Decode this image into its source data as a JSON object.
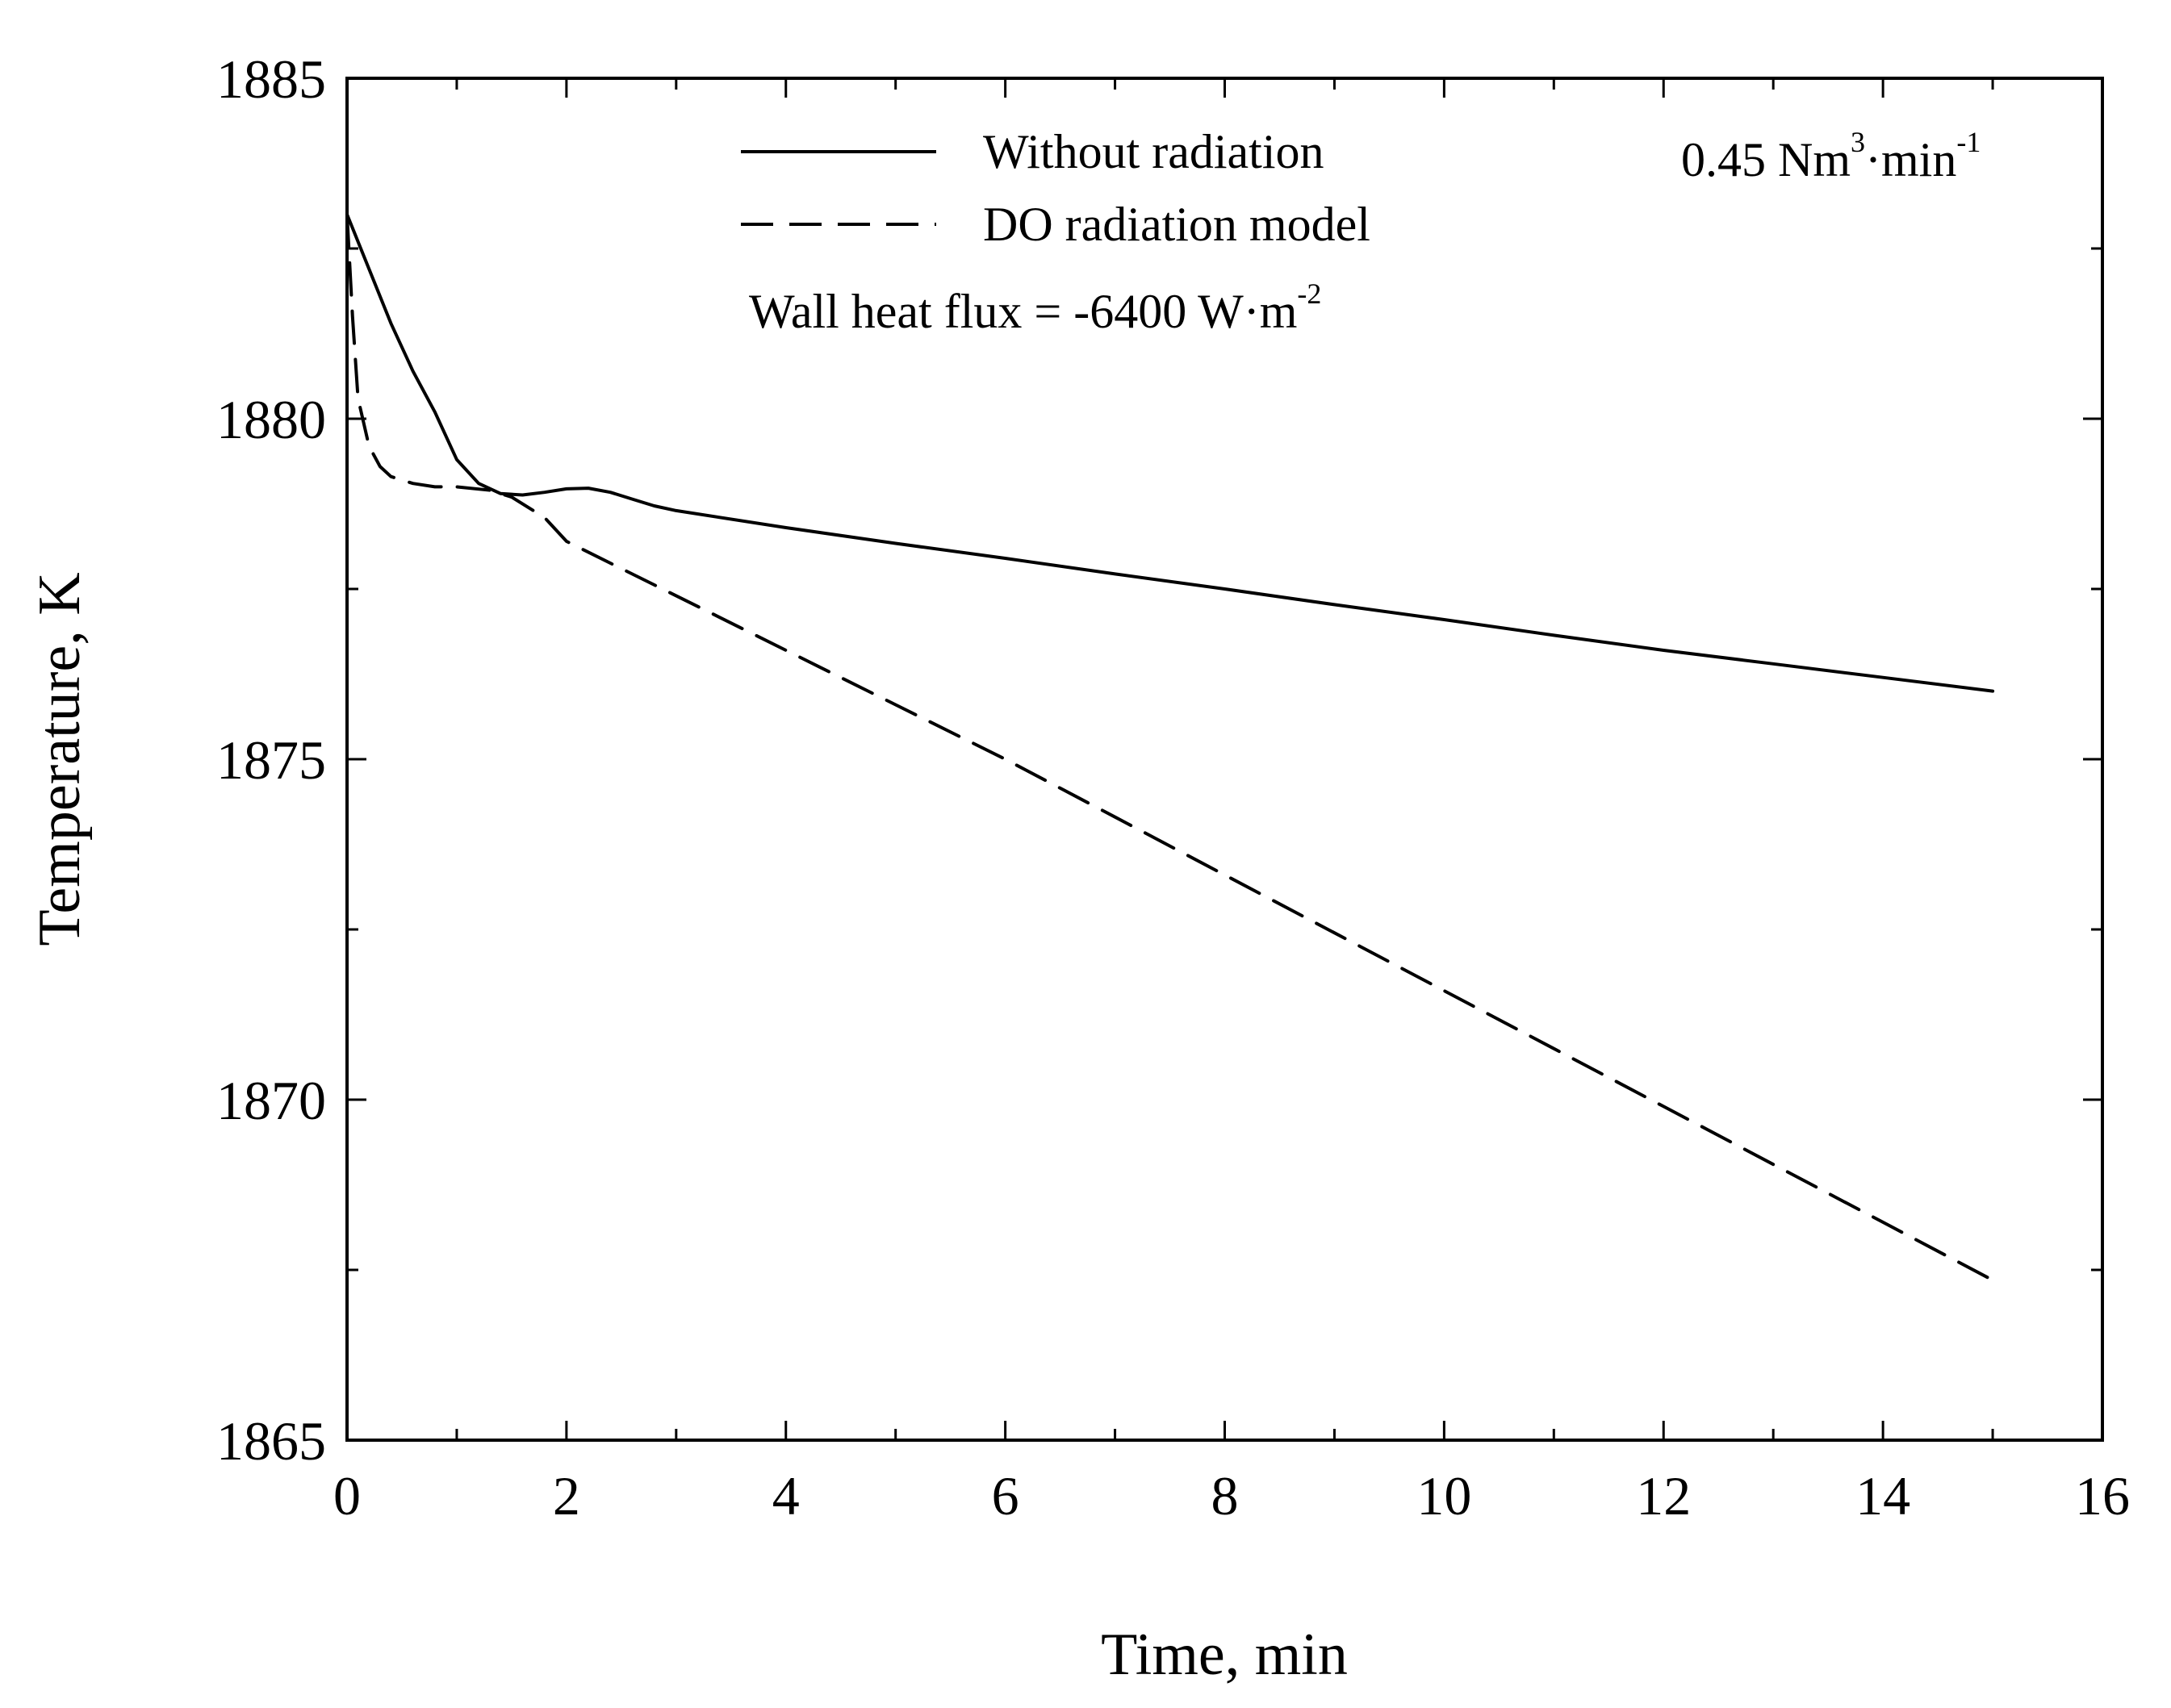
{
  "chart_data": {
    "type": "line",
    "title": "",
    "xlabel": "Time, min",
    "ylabel": "Temperature, K",
    "xlim": [
      0,
      16
    ],
    "ylim": [
      1865,
      1885
    ],
    "xticks": [
      0,
      2,
      4,
      6,
      8,
      10,
      12,
      14,
      16
    ],
    "yticks": [
      1865,
      1870,
      1875,
      1880,
      1885
    ],
    "xtick_labels": [
      "0",
      "2",
      "4",
      "6",
      "8",
      "10",
      "12",
      "14",
      "16"
    ],
    "ytick_labels": [
      "1865",
      "1870",
      "1875",
      "1880",
      "1885"
    ],
    "grid": false,
    "legend_position": "top-center",
    "series": [
      {
        "name": "Without radiation",
        "style": "solid",
        "x": [
          0,
          0.2,
          0.4,
          0.6,
          0.8,
          1.0,
          1.2,
          1.4,
          1.6,
          1.8,
          2.0,
          2.2,
          2.4,
          2.6,
          2.8,
          3.0,
          4,
          5,
          6,
          7,
          8,
          9,
          10,
          11,
          12,
          13,
          14,
          15
        ],
        "y": [
          1883.0,
          1882.2,
          1881.4,
          1880.7,
          1880.1,
          1879.4,
          1879.05,
          1878.9,
          1878.88,
          1878.92,
          1878.97,
          1878.98,
          1878.92,
          1878.82,
          1878.72,
          1878.65,
          1878.4,
          1878.17,
          1877.95,
          1877.72,
          1877.5,
          1877.27,
          1877.05,
          1876.82,
          1876.6,
          1876.4,
          1876.2,
          1876.0
        ]
      },
      {
        "name": "DO radiation model",
        "style": "dashed",
        "x": [
          0,
          0.05,
          0.1,
          0.2,
          0.3,
          0.4,
          0.6,
          0.8,
          1.0,
          1.3,
          1.5,
          1.8,
          2.0,
          2.5,
          3.0,
          4,
          5,
          6,
          7,
          8,
          9,
          10,
          11,
          12,
          13,
          14,
          15
        ],
        "y": [
          1883.0,
          1881.5,
          1880.3,
          1879.6,
          1879.3,
          1879.15,
          1879.05,
          1879.0,
          1879.0,
          1878.95,
          1878.85,
          1878.55,
          1878.2,
          1877.8,
          1877.4,
          1876.6,
          1875.8,
          1875.0,
          1874.15,
          1873.3,
          1872.45,
          1871.6,
          1870.75,
          1869.9,
          1869.05,
          1868.2,
          1867.35
        ]
      }
    ],
    "annotations": {
      "flow_rate": {
        "main": "0.45 Nm",
        "sup1": "3",
        "mid": "·min",
        "sup2": "-1"
      },
      "wall_flux": {
        "main": "Wall heat flux = -6400 W·m",
        "sup": "-2"
      }
    }
  }
}
